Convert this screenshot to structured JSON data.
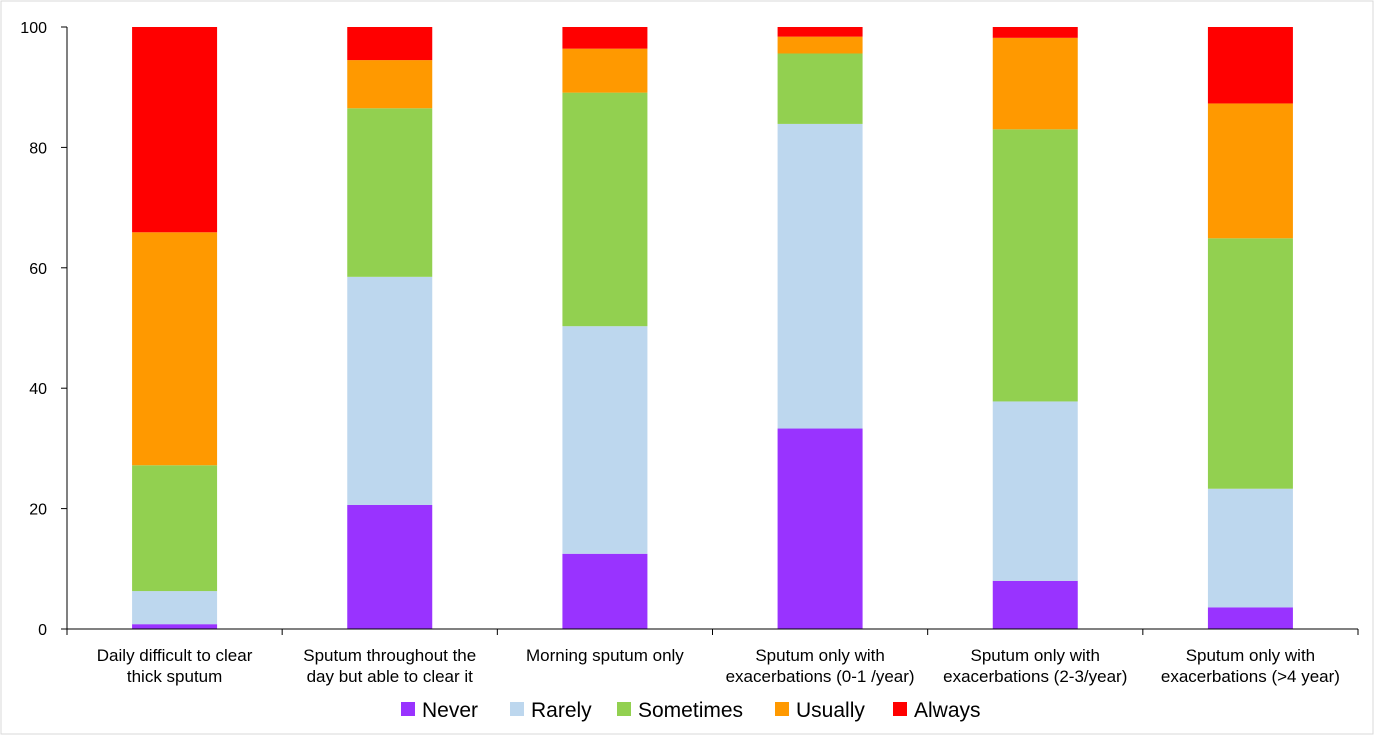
{
  "chart_data": {
    "type": "bar",
    "stacked": true,
    "categories": [
      [
        "Daily difficult to clear",
        "thick sputum"
      ],
      [
        "Sputum throughout the",
        "day but able to clear it"
      ],
      [
        "Morning sputum only"
      ],
      [
        "Sputum only with",
        "exacerbations (0-1 /year)"
      ],
      [
        "Sputum only with",
        "exacerbations (2-3/year)"
      ],
      [
        "Sputum only with",
        "exacerbations (>4 year)"
      ]
    ],
    "series": [
      {
        "name": "Never",
        "color": "#9933FF",
        "values": [
          0.8,
          20.6,
          12.5,
          33.3,
          8.0,
          3.6
        ]
      },
      {
        "name": "Rarely",
        "color": "#BDD7EE",
        "values": [
          5.5,
          37.9,
          37.8,
          50.6,
          29.8,
          19.7
        ]
      },
      {
        "name": "Sometimes",
        "color": "#92D050",
        "values": [
          20.9,
          28.0,
          38.8,
          11.7,
          45.2,
          41.6
        ]
      },
      {
        "name": "Usually",
        "color": "#FF9900",
        "values": [
          38.7,
          8.0,
          7.3,
          2.8,
          15.2,
          22.4
        ]
      },
      {
        "name": "Always",
        "color": "#FF0000",
        "values": [
          34.1,
          5.5,
          3.6,
          1.6,
          1.8,
          12.7
        ]
      }
    ],
    "yticks": [
      0,
      20,
      40,
      60,
      80,
      100
    ],
    "ylim": [
      0,
      100
    ],
    "grid": false,
    "legend": "bottom"
  }
}
